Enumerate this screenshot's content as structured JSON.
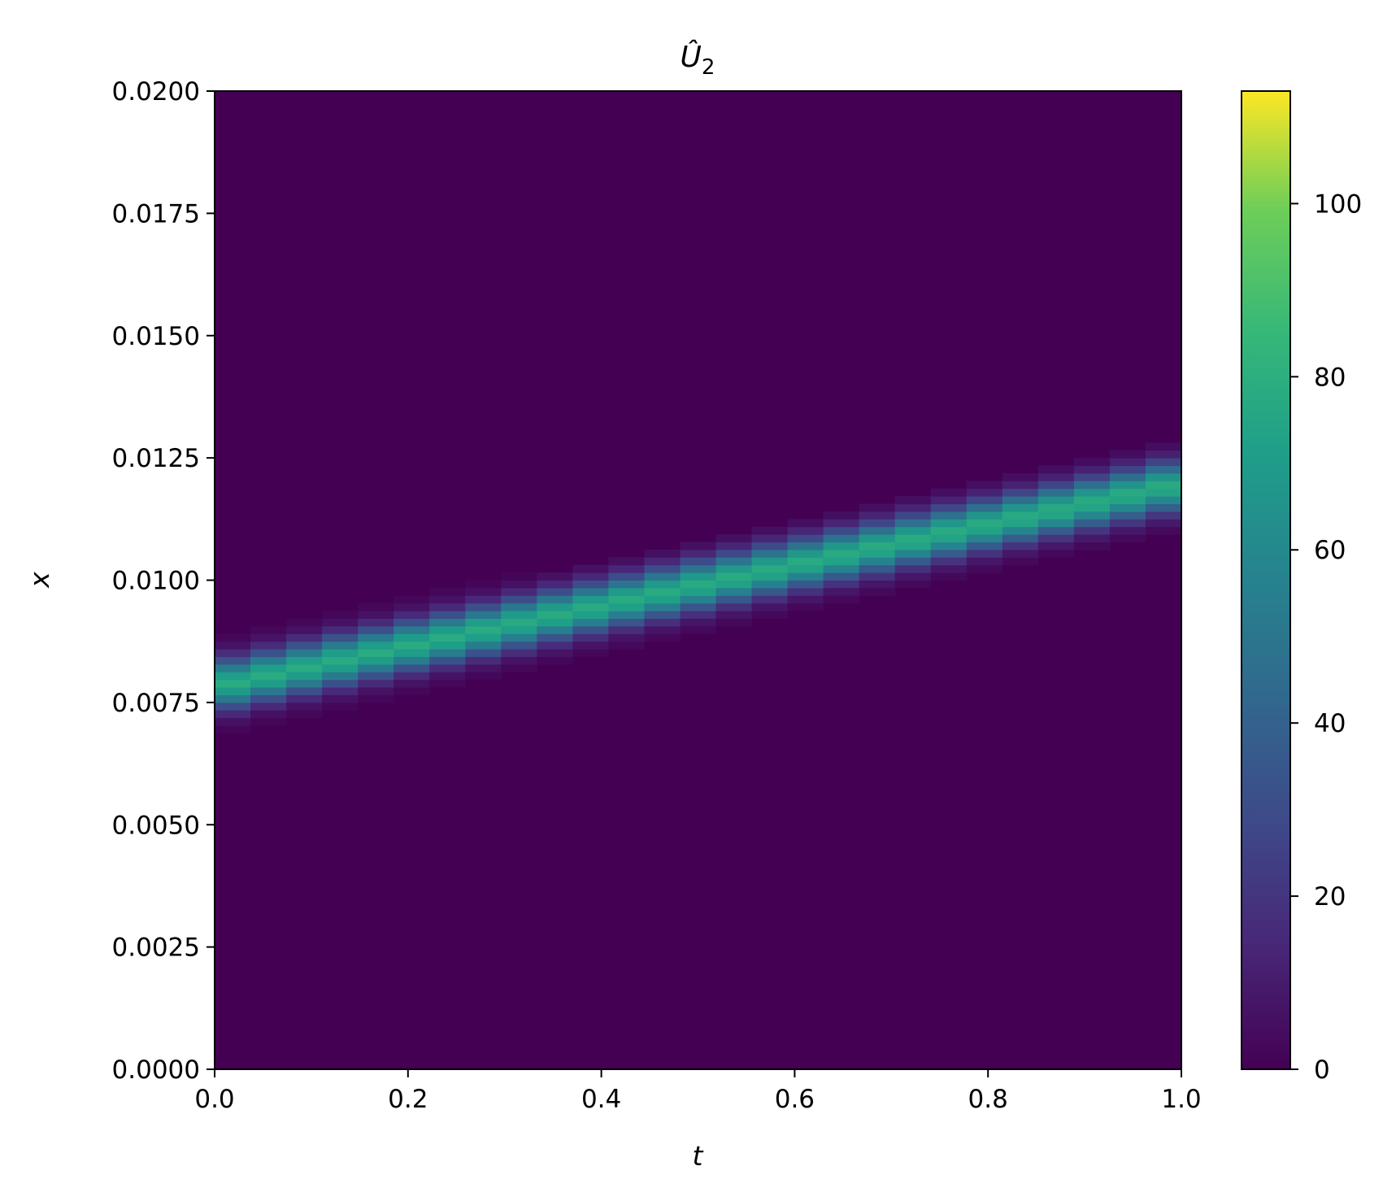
{
  "chart_data": {
    "type": "heatmap",
    "title": "Û",
    "title_subscript": "2",
    "xlabel": "t",
    "ylabel": "x",
    "xlim": [
      0.0,
      1.0
    ],
    "ylim": [
      0.0,
      0.02
    ],
    "xticks": [
      "0.0",
      "0.2",
      "0.4",
      "0.6",
      "0.8",
      "1.0"
    ],
    "yticks": [
      "0.0000",
      "0.0025",
      "0.0050",
      "0.0075",
      "0.0100",
      "0.0125",
      "0.0150",
      "0.0175",
      "0.0200"
    ],
    "colormap": "viridis",
    "colorbar": {
      "range": [
        0,
        113
      ],
      "ticks": [
        "0",
        "20",
        "40",
        "60",
        "80",
        "100"
      ]
    },
    "grid": false,
    "t_bins": 27,
    "x_bins": 128,
    "band": {
      "center_start": 0.0079,
      "center_end": 0.0119,
      "peak_value": 78,
      "width": 0.00035
    }
  }
}
